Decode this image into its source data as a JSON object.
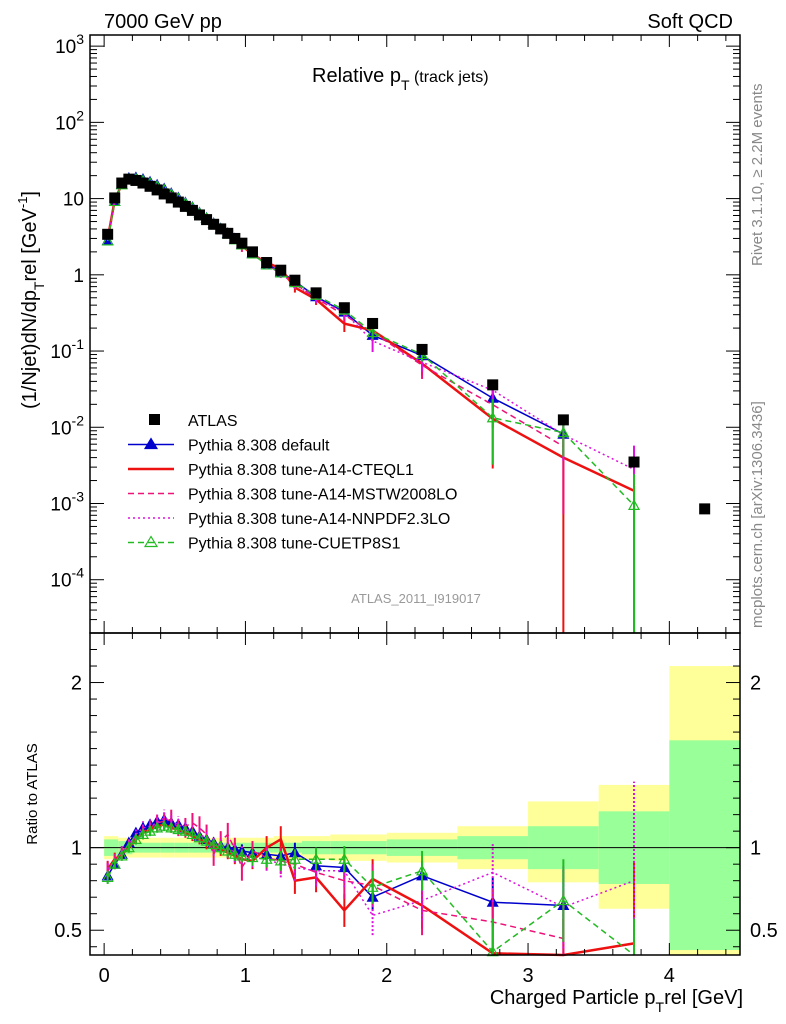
{
  "header": {
    "left": "7000 GeV pp",
    "right": "Soft QCD"
  },
  "plot_title": "Relative p",
  "plot_title_sub": "T",
  "plot_title_suffix": " (track jets)",
  "side_label_top": "Rivet 3.1.10, ≥ 2.2M events",
  "side_label_bottom": "mcplots.cern.ch [arXiv:1306.3436]",
  "analysis_label": "ATLAS_2011_I919017",
  "ylabel_main": "(1/Njet)dN/dp",
  "ylabel_main_sub": "T",
  "ylabel_main_suffix": "rel [GeV",
  "ylabel_main_exp": "-1",
  "ylabel_main_close": "]",
  "ylabel_ratio": "Ratio to ATLAS",
  "xlabel": "Charged Particle p",
  "xlabel_sub": "T",
  "xlabel_suffix": "rel [GeV]",
  "colors": {
    "data": "#000000",
    "default": "#0000cc",
    "a14cteq": "#ee1111",
    "a14mstw": "#ee1177",
    "a14nnpdf": "#dd11dd",
    "cuetp8s1": "#22bb22",
    "band_inner": "#99ff99",
    "band_outer": "#ffff99"
  },
  "chart_data": {
    "type": "line",
    "x_range": [
      -0.1,
      4.5
    ],
    "y_range": [
      2e-05,
      1400
    ],
    "ratio_range": [
      0.35,
      2.3
    ],
    "y_scale": "log",
    "x_ticks": [
      0,
      1,
      2,
      3,
      4
    ],
    "y_ticks": [
      "10^-4",
      "10^-3",
      "10^-2",
      "10^-1",
      "1",
      "10",
      "10^2",
      "10^3"
    ],
    "ratio_ticks": [
      0.5,
      1,
      2
    ],
    "legend_position": "bottom-left",
    "legend": [
      "ATLAS",
      "Pythia 8.308 default",
      "Pythia 8.308 tune-A14-CTEQL1",
      "Pythia 8.308 tune-A14-MSTW2008LO",
      "Pythia 8.308 tune-A14-NNPDF2.3LO",
      "Pythia 8.308 tune-CUETP8S1"
    ],
    "data_x": [
      0.025,
      0.075,
      0.125,
      0.175,
      0.225,
      0.275,
      0.325,
      0.375,
      0.425,
      0.475,
      0.525,
      0.575,
      0.625,
      0.675,
      0.725,
      0.775,
      0.825,
      0.875,
      0.925,
      0.975,
      1.05,
      1.15,
      1.25,
      1.35,
      1.5,
      1.7,
      1.9,
      2.25,
      2.75,
      3.25,
      3.75,
      4.25
    ],
    "data_y": [
      3.4,
      10.2,
      16.0,
      18.0,
      17.3,
      16.0,
      14.5,
      13.0,
      11.5,
      10.2,
      9.0,
      7.9,
      7.0,
      6.1,
      5.3,
      4.6,
      4.0,
      3.5,
      3.0,
      2.6,
      2.0,
      1.45,
      1.15,
      0.85,
      0.58,
      0.37,
      0.23,
      0.105,
      0.036,
      0.0125,
      0.0035,
      0.00085
    ],
    "band_x_edges": [
      0.0,
      0.1,
      0.2,
      0.3,
      0.4,
      0.5,
      0.6,
      0.7,
      0.8,
      0.9,
      1.0,
      1.1,
      1.2,
      1.3,
      1.4,
      1.6,
      1.8,
      2.0,
      2.5,
      3.0,
      3.5,
      4.0,
      4.5
    ],
    "band_inner": [
      [
        0.95,
        1.05
      ],
      [
        0.96,
        1.04
      ],
      [
        0.97,
        1.03
      ],
      [
        0.97,
        1.03
      ],
      [
        0.97,
        1.03
      ],
      [
        0.97,
        1.03
      ],
      [
        0.97,
        1.03
      ],
      [
        0.97,
        1.03
      ],
      [
        0.97,
        1.03
      ],
      [
        0.97,
        1.03
      ],
      [
        0.97,
        1.03
      ],
      [
        0.97,
        1.03
      ],
      [
        0.97,
        1.03
      ],
      [
        0.97,
        1.03
      ],
      [
        0.96,
        1.04
      ],
      [
        0.96,
        1.04
      ],
      [
        0.96,
        1.04
      ],
      [
        0.95,
        1.05
      ],
      [
        0.93,
        1.07
      ],
      [
        0.87,
        1.13
      ],
      [
        0.78,
        1.22
      ],
      [
        0.38,
        1.65
      ]
    ],
    "band_outer": [
      [
        0.93,
        1.07
      ],
      [
        0.94,
        1.06
      ],
      [
        0.94,
        1.06
      ],
      [
        0.94,
        1.06
      ],
      [
        0.94,
        1.06
      ],
      [
        0.94,
        1.06
      ],
      [
        0.94,
        1.06
      ],
      [
        0.94,
        1.06
      ],
      [
        0.94,
        1.06
      ],
      [
        0.94,
        1.06
      ],
      [
        0.94,
        1.06
      ],
      [
        0.94,
        1.06
      ],
      [
        0.93,
        1.07
      ],
      [
        0.93,
        1.07
      ],
      [
        0.93,
        1.07
      ],
      [
        0.92,
        1.08
      ],
      [
        0.92,
        1.08
      ],
      [
        0.91,
        1.09
      ],
      [
        0.87,
        1.13
      ],
      [
        0.79,
        1.28
      ],
      [
        0.63,
        1.38
      ],
      [
        0.35,
        2.1
      ]
    ],
    "series": [
      {
        "key": "default",
        "name": "Pythia 8.308 default",
        "marker": "triangle-filled",
        "dash": "solid",
        "ratio": [
          0.83,
          0.9,
          0.96,
          1.03,
          1.09,
          1.12,
          1.14,
          1.16,
          1.17,
          1.15,
          1.14,
          1.12,
          1.1,
          1.07,
          1.05,
          1.03,
          1.01,
          1.0,
          0.99,
          0.98,
          0.97,
          0.96,
          0.95,
          0.97,
          0.89,
          0.88,
          0.7,
          0.83,
          0.67,
          0.65,
          null
        ],
        "ratio_err": [
          0.04,
          0.03,
          0.02,
          0.02,
          0.02,
          0.02,
          0.02,
          0.02,
          0.02,
          0.02,
          0.02,
          0.03,
          0.03,
          0.03,
          0.03,
          0.03,
          0.03,
          0.03,
          0.04,
          0.04,
          0.04,
          0.05,
          0.05,
          0.06,
          0.06,
          0.07,
          0.08,
          0.09,
          0.15,
          0.22,
          0.0
        ]
      },
      {
        "key": "a14cteq",
        "name": "Pythia 8.308 tune-A14-CTEQL1",
        "marker": "none",
        "dash": "solid",
        "ratio": [
          0.87,
          0.93,
          0.96,
          1.0,
          1.05,
          1.09,
          1.11,
          1.13,
          1.14,
          1.12,
          1.11,
          1.09,
          1.07,
          1.05,
          1.03,
          1.01,
          0.99,
          0.97,
          0.95,
          0.93,
          0.92,
          1.0,
          1.05,
          0.8,
          0.82,
          0.62,
          0.81,
          0.65,
          0.36,
          0.32,
          0.42
        ],
        "ratio_err": [
          0.05,
          0.04,
          0.03,
          0.03,
          0.03,
          0.03,
          0.03,
          0.03,
          0.03,
          0.03,
          0.03,
          0.03,
          0.03,
          0.03,
          0.04,
          0.04,
          0.04,
          0.04,
          0.05,
          0.05,
          0.05,
          0.07,
          0.08,
          0.08,
          0.09,
          0.1,
          0.12,
          0.14,
          0.2,
          0.25,
          0.5
        ]
      },
      {
        "key": "a14mstw",
        "name": "Pythia 8.308 tune-A14-MSTW2008LO",
        "marker": "none",
        "dash": "dashed",
        "ratio": [
          0.86,
          0.91,
          0.97,
          1.02,
          1.06,
          1.1,
          1.12,
          1.15,
          1.16,
          1.17,
          1.12,
          1.13,
          1.15,
          1.12,
          1.08,
          0.96,
          1.04,
          1.08,
          0.99,
          0.88,
          0.98,
          0.94,
          0.92,
          0.9,
          0.85,
          0.8,
          0.77,
          0.62,
          0.55,
          0.45,
          null
        ],
        "ratio_err": [
          0.05,
          0.04,
          0.03,
          0.03,
          0.03,
          0.03,
          0.04,
          0.05,
          0.05,
          0.06,
          0.05,
          0.05,
          0.06,
          0.07,
          0.06,
          0.07,
          0.06,
          0.07,
          0.07,
          0.08,
          0.06,
          0.07,
          0.08,
          0.08,
          0.09,
          0.11,
          0.13,
          0.15,
          0.2,
          0.28,
          0.0
        ]
      },
      {
        "key": "a14nnpdf",
        "name": "Pythia 8.308 tune-A14-NNPDF2.3LO",
        "marker": "none",
        "dash": "dotted",
        "ratio": [
          0.87,
          0.92,
          0.98,
          1.02,
          1.08,
          1.12,
          1.13,
          1.15,
          1.18,
          1.16,
          1.14,
          1.12,
          1.1,
          1.08,
          1.06,
          1.01,
          1.02,
          1.0,
          0.97,
          0.96,
          0.94,
          0.93,
          0.9,
          0.88,
          0.86,
          0.86,
          0.59,
          0.68,
          0.85,
          0.64,
          0.8
        ],
        "ratio_err": [
          0.05,
          0.04,
          0.03,
          0.03,
          0.03,
          0.04,
          0.04,
          0.05,
          0.05,
          0.05,
          0.05,
          0.05,
          0.05,
          0.05,
          0.05,
          0.06,
          0.05,
          0.06,
          0.06,
          0.06,
          0.06,
          0.07,
          0.08,
          0.08,
          0.09,
          0.1,
          0.12,
          0.12,
          0.18,
          0.25,
          0.6
        ]
      },
      {
        "key": "cuetp8s1",
        "name": "Pythia 8.308 tune-CUETP8S1",
        "marker": "triangle-open",
        "dash": "dashed",
        "ratio": [
          0.82,
          0.9,
          0.95,
          1.0,
          1.05,
          1.08,
          1.1,
          1.12,
          1.13,
          1.12,
          1.11,
          1.1,
          1.08,
          1.06,
          1.04,
          1.02,
          1.0,
          0.98,
          0.96,
          0.95,
          0.94,
          0.93,
          0.92,
          0.93,
          0.93,
          0.93,
          0.76,
          0.86,
          0.37,
          0.68,
          0.27
        ],
        "ratio_err": [
          0.04,
          0.03,
          0.03,
          0.03,
          0.03,
          0.03,
          0.03,
          0.03,
          0.03,
          0.03,
          0.03,
          0.03,
          0.03,
          0.03,
          0.03,
          0.03,
          0.04,
          0.04,
          0.04,
          0.04,
          0.05,
          0.05,
          0.06,
          0.06,
          0.07,
          0.08,
          0.1,
          0.12,
          0.2,
          0.25,
          0.3
        ]
      }
    ]
  }
}
